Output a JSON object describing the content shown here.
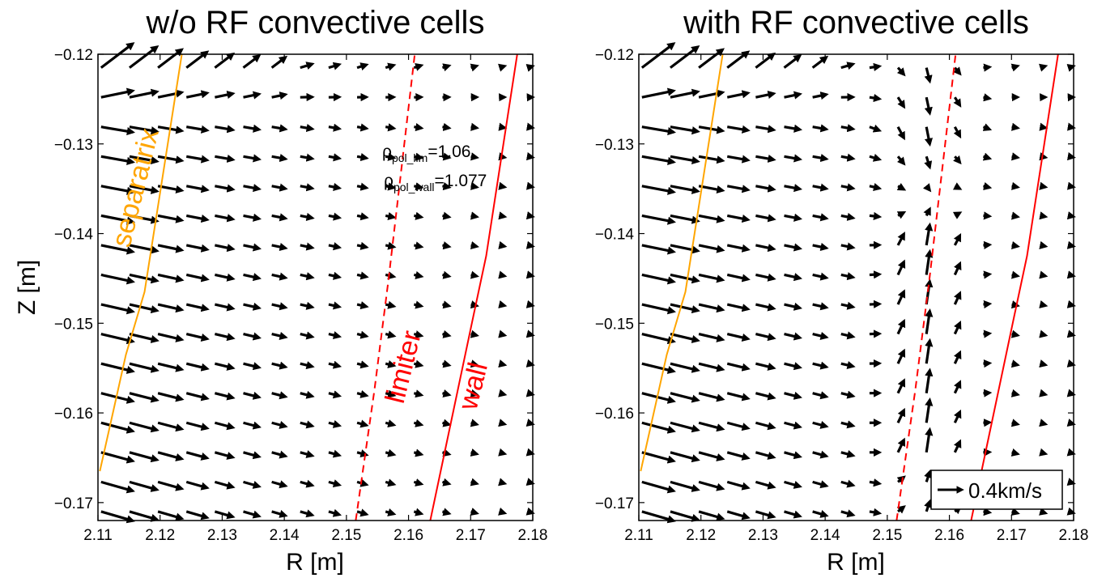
{
  "figure": {
    "titles": [
      "w/o RF convective cells",
      "with RF convective cells"
    ],
    "xlabel": "R [m]",
    "ylabel": "Z [m]"
  },
  "annotations": {
    "rho_lim_symbol": "ρ",
    "rho_lim_sub": "pol_lim",
    "rho_lim_value": "=1.06",
    "rho_wall_symbol": "ρ",
    "rho_wall_sub": "pol_wall",
    "rho_wall_value": "=1.077",
    "separatrix_label": "separatrix",
    "limiter_label": "limiter",
    "wall_label": "wall",
    "quiver_key_label": "0.4km/s"
  },
  "colors": {
    "separatrix": "#FFA500",
    "limiter": "#FF0000",
    "wall": "#FF0000",
    "arrows": "#000000"
  },
  "chart_data": [
    {
      "type": "quiver",
      "title": "w/o RF convective cells",
      "xlabel": "R [m]",
      "ylabel": "Z [m]",
      "xlim": [
        2.11,
        2.18
      ],
      "ylim": [
        -0.172,
        -0.12
      ],
      "xticks": [
        "2.11",
        "2.12",
        "2.13",
        "2.14",
        "2.15",
        "2.16",
        "2.17",
        "2.18"
      ],
      "yticks": [
        "−0.12",
        "−0.13",
        "−0.14",
        "−0.15",
        "−0.16",
        "−0.17"
      ],
      "grid": false,
      "flow_field": "radially outward E×B flow, strongest inside separatrix, decaying toward the wall",
      "separatrix_R_at_Z": [
        [
          2.1103,
          -0.1665
        ],
        [
          2.1145,
          -0.1535
        ],
        [
          2.1175,
          -0.1465
        ],
        [
          2.1235,
          -0.12
        ]
      ],
      "limiter_R_at_Z": [
        [
          2.1515,
          -0.172
        ],
        [
          2.1545,
          -0.1575
        ],
        [
          2.1568,
          -0.145
        ],
        [
          2.161,
          -0.12
        ]
      ],
      "wall_R_at_Z": [
        [
          2.1635,
          -0.172
        ],
        [
          2.1705,
          -0.149
        ],
        [
          2.1725,
          -0.1425
        ],
        [
          2.1775,
          -0.12
        ]
      ]
    },
    {
      "type": "quiver",
      "title": "with RF convective cells",
      "xlabel": "R [m]",
      "ylabel": "Z [m]",
      "xlim": [
        2.11,
        2.18
      ],
      "ylim": [
        -0.172,
        -0.12
      ],
      "xticks": [
        "2.11",
        "2.12",
        "2.13",
        "2.14",
        "2.15",
        "2.16",
        "2.17",
        "2.18"
      ],
      "yticks": [
        "−0.12",
        "−0.13",
        "−0.14",
        "−0.15",
        "−0.16",
        "−0.17"
      ],
      "grid": false,
      "flow_field": "radial outward flow plus convective cell near limiter: upward flow below Z≈-0.135 around R≈2.155, downward flow above",
      "quiver_key": {
        "label": "0.4km/s",
        "position": "bottom-right"
      },
      "separatrix_R_at_Z": [
        [
          2.1103,
          -0.1665
        ],
        [
          2.1145,
          -0.1535
        ],
        [
          2.1175,
          -0.1465
        ],
        [
          2.1235,
          -0.12
        ]
      ],
      "limiter_R_at_Z": [
        [
          2.1515,
          -0.172
        ],
        [
          2.1545,
          -0.1575
        ],
        [
          2.1568,
          -0.145
        ],
        [
          2.161,
          -0.12
        ]
      ],
      "wall_R_at_Z": [
        [
          2.1635,
          -0.172
        ],
        [
          2.1705,
          -0.149
        ],
        [
          2.1725,
          -0.1425
        ],
        [
          2.1775,
          -0.12
        ]
      ]
    }
  ]
}
